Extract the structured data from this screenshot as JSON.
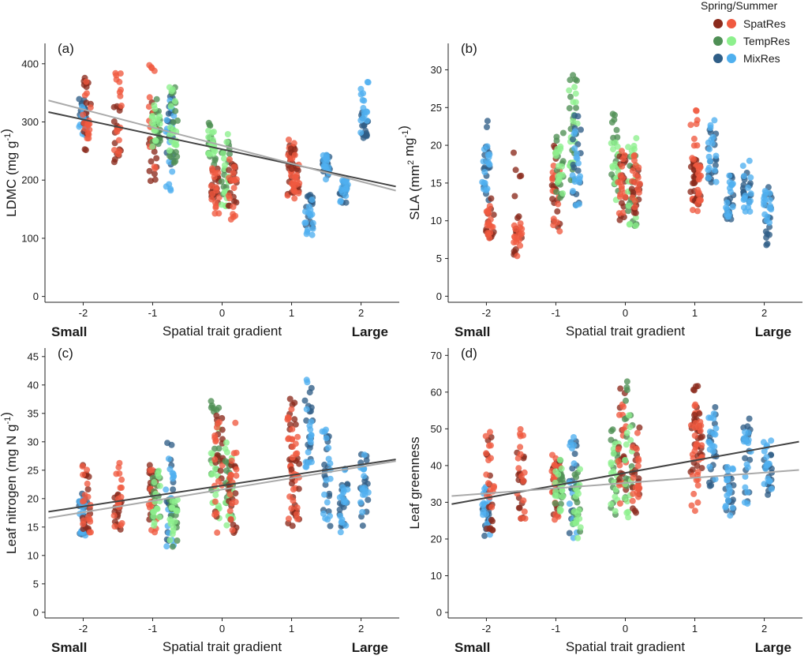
{
  "legend": {
    "title": "Spring/Summer",
    "entries": [
      {
        "name": "SpatRes",
        "spring": "#8b2a1c",
        "summer": "#f05a40"
      },
      {
        "name": "TempRes",
        "spring": "#4f8f55",
        "summer": "#8df08d"
      },
      {
        "name": "MixRes",
        "spring": "#2f5e87",
        "summer": "#4fb0ef"
      }
    ]
  },
  "chart_data": [
    {
      "type": "scatter",
      "panel": "(a)",
      "title": "",
      "xlabel": "Spatial trait gradient",
      "ylabel": "LDMC (mg g⁻¹)",
      "ylabel_parts": {
        "main": "LDMC (mg g",
        "sup": "-1",
        "tail": ")"
      },
      "end_labels": {
        "left": "Small",
        "right": "Large"
      },
      "xlim": [
        -2.55,
        2.55
      ],
      "ylim": [
        -10,
        435
      ],
      "xticks": [
        "-2",
        "-1",
        "0",
        "1",
        "2"
      ],
      "yticks": [
        "0",
        "100",
        "200",
        "300",
        "400"
      ],
      "regression_lines": [
        {
          "name": "spring",
          "color": "#444444",
          "x": [
            -2.5,
            2.5
          ],
          "y": [
            317,
            189
          ]
        },
        {
          "name": "summer",
          "color": "#aaaaaa",
          "x": [
            -2.5,
            2.5
          ],
          "y": [
            337,
            182
          ]
        }
      ],
      "groups": [
        {
          "x": -2.0,
          "treatment": "MixRes",
          "spring": [
            290,
            340
          ],
          "summer": [
            275,
            330
          ]
        },
        {
          "x": -1.95,
          "treatment": "SpatRes",
          "spring": [
            245,
            390
          ],
          "summer": [
            260,
            380
          ]
        },
        {
          "x": -1.5,
          "treatment": "SpatRes",
          "spring": [
            230,
            335
          ],
          "summer": [
            240,
            385
          ]
        },
        {
          "x": -1.0,
          "treatment": "SpatRes",
          "spring": [
            185,
            340
          ],
          "summer": [
            220,
            400
          ]
        },
        {
          "x": -0.95,
          "treatment": "TempRes",
          "spring": [
            260,
            340
          ],
          "summer": [
            250,
            355
          ]
        },
        {
          "x": -0.75,
          "treatment": "MixRes",
          "spring": [
            215,
            345
          ],
          "summer": [
            180,
            350
          ]
        },
        {
          "x": -0.7,
          "treatment": "TempRes",
          "spring": [
            230,
            365
          ],
          "summer": [
            245,
            372
          ]
        },
        {
          "x": -0.15,
          "treatment": "TempRes",
          "spring": [
            225,
            300
          ],
          "summer": [
            240,
            290
          ]
        },
        {
          "x": -0.1,
          "treatment": "SpatRes",
          "spring": [
            150,
            220
          ],
          "summer": [
            140,
            230
          ]
        },
        {
          "x": 0.05,
          "treatment": "TempRes",
          "spring": [
            175,
            280
          ],
          "summer": [
            155,
            290
          ]
        },
        {
          "x": 0.15,
          "treatment": "SpatRes",
          "spring": [
            150,
            235
          ],
          "summer": [
            130,
            250
          ]
        },
        {
          "x": 1.0,
          "treatment": "SpatRes",
          "spring": [
            165,
            268
          ],
          "summer": [
            160,
            270
          ]
        },
        {
          "x": 1.05,
          "treatment": "SpatRes",
          "spring": [
            170,
            262
          ],
          "summer": [
            175,
            255
          ]
        },
        {
          "x": 1.25,
          "treatment": "MixRes",
          "spring": [
            115,
            175
          ],
          "summer": [
            105,
            170
          ]
        },
        {
          "x": 1.5,
          "treatment": "MixRes",
          "spring": [
            205,
            245
          ],
          "summer": [
            200,
            245
          ]
        },
        {
          "x": 1.75,
          "treatment": "MixRes",
          "spring": [
            160,
            200
          ],
          "summer": [
            155,
            210
          ]
        },
        {
          "x": 2.05,
          "treatment": "MixRes",
          "spring": [
            270,
            320
          ],
          "summer": [
            280,
            372
          ]
        }
      ]
    },
    {
      "type": "scatter",
      "panel": "(b)",
      "title": "",
      "xlabel": "Spatial trait gradient",
      "ylabel": "SLA (mm² mg⁻¹)",
      "ylabel_parts": {
        "main": "SLA (mm",
        "sup": "2",
        "mid": " mg",
        "sup2": "-1",
        "tail": ")"
      },
      "end_labels": {
        "left": "Small",
        "right": "Large"
      },
      "xlim": [
        -2.55,
        2.55
      ],
      "ylim": [
        -0.8,
        33.5
      ],
      "xticks": [
        "-2",
        "-1",
        "0",
        "1",
        "2"
      ],
      "yticks": [
        "0",
        "5",
        "10",
        "15",
        "20",
        "25",
        "30"
      ],
      "regression_lines": [],
      "groups": [
        {
          "x": -2.0,
          "treatment": "MixRes",
          "spring": [
            12,
            23.5
          ],
          "summer": [
            12,
            20
          ]
        },
        {
          "x": -1.95,
          "treatment": "SpatRes",
          "spring": [
            7.5,
            13
          ],
          "summer": [
            7.5,
            12
          ]
        },
        {
          "x": -1.55,
          "treatment": "SpatRes",
          "spring": [
            5.5,
            22
          ],
          "summer": [
            5,
            10
          ]
        },
        {
          "x": -1.0,
          "treatment": "SpatRes",
          "spring": [
            9,
            21
          ],
          "summer": [
            7.5,
            19
          ]
        },
        {
          "x": -0.95,
          "treatment": "TempRes",
          "spring": [
            13,
            22
          ],
          "summer": [
            13,
            20
          ]
        },
        {
          "x": -0.75,
          "treatment": "TempRes",
          "spring": [
            15,
            30.5
          ],
          "summer": [
            14,
            28
          ]
        },
        {
          "x": -0.7,
          "treatment": "MixRes",
          "spring": [
            12,
            24
          ],
          "summer": [
            12,
            22
          ]
        },
        {
          "x": -0.15,
          "treatment": "TempRes",
          "spring": [
            13,
            24.5
          ],
          "summer": [
            12,
            22
          ]
        },
        {
          "x": -0.05,
          "treatment": "SpatRes",
          "spring": [
            10,
            19
          ],
          "summer": [
            10,
            20
          ]
        },
        {
          "x": 0.1,
          "treatment": "TempRes",
          "spring": [
            9,
            19
          ],
          "summer": [
            9,
            21
          ]
        },
        {
          "x": 0.15,
          "treatment": "SpatRes",
          "spring": [
            11,
            18
          ],
          "summer": [
            11,
            19
          ]
        },
        {
          "x": 1.0,
          "treatment": "SpatRes",
          "spring": [
            12,
            19
          ],
          "summer": [
            10.5,
            25
          ]
        },
        {
          "x": 1.05,
          "treatment": "SpatRes",
          "spring": [
            12,
            18
          ],
          "summer": [
            12,
            18
          ]
        },
        {
          "x": 1.25,
          "treatment": "MixRes",
          "spring": [
            15,
            23
          ],
          "summer": [
            15,
            24
          ]
        },
        {
          "x": 1.5,
          "treatment": "MixRes",
          "spring": [
            10,
            16
          ],
          "summer": [
            10,
            16
          ]
        },
        {
          "x": 1.75,
          "treatment": "MixRes",
          "spring": [
            11,
            17.5
          ],
          "summer": [
            11,
            18
          ]
        },
        {
          "x": 2.05,
          "treatment": "MixRes",
          "spring": [
            6.3,
            14.5
          ],
          "summer": [
            9.5,
            14
          ]
        }
      ]
    },
    {
      "type": "scatter",
      "panel": "(c)",
      "title": "",
      "xlabel": "Spatial trait gradient",
      "ylabel": "Leaf nitrogen (mg N g⁻¹)",
      "ylabel_parts": {
        "main": "Leaf nitrogen (mg N g",
        "sup": "-1",
        "tail": ")"
      },
      "end_labels": {
        "left": "Small",
        "right": "Large"
      },
      "xlim": [
        -2.55,
        2.55
      ],
      "ylim": [
        -1,
        46.5
      ],
      "xticks": [
        "-2",
        "-1",
        "0",
        "1",
        "2"
      ],
      "yticks": [
        "0",
        "5",
        "10",
        "15",
        "20",
        "25",
        "30",
        "35",
        "40",
        "45"
      ],
      "regression_lines": [
        {
          "name": "spring",
          "color": "#444444",
          "x": [
            -2.5,
            2.5
          ],
          "y": [
            17.7,
            26.9
          ]
        },
        {
          "name": "summer",
          "color": "#aaaaaa",
          "x": [
            -2.5,
            2.5
          ],
          "y": [
            16.6,
            26.6
          ]
        }
      ],
      "groups": [
        {
          "x": -2.0,
          "treatment": "MixRes",
          "spring": [
            13.5,
            21
          ],
          "summer": [
            13,
            20
          ]
        },
        {
          "x": -1.95,
          "treatment": "SpatRes",
          "spring": [
            14,
            26
          ],
          "summer": [
            14,
            26
          ]
        },
        {
          "x": -1.5,
          "treatment": "SpatRes",
          "spring": [
            13,
            22
          ],
          "summer": [
            13,
            26.5
          ]
        },
        {
          "x": -1.0,
          "treatment": "SpatRes",
          "spring": [
            14,
            27
          ],
          "summer": [
            14,
            26
          ]
        },
        {
          "x": -0.95,
          "treatment": "TempRes",
          "spring": [
            15,
            26
          ],
          "summer": [
            15,
            25
          ]
        },
        {
          "x": -0.75,
          "treatment": "MixRes",
          "spring": [
            12,
            30.5
          ],
          "summer": [
            11.5,
            28
          ]
        },
        {
          "x": -0.7,
          "treatment": "TempRes",
          "spring": [
            11.5,
            20
          ],
          "summer": [
            12,
            20
          ]
        },
        {
          "x": -0.1,
          "treatment": "TempRes",
          "spring": [
            17,
            38.5
          ],
          "summer": [
            15,
            33
          ]
        },
        {
          "x": -0.05,
          "treatment": "SpatRes",
          "spring": [
            15,
            36
          ],
          "summer": [
            14,
            36
          ]
        },
        {
          "x": 0.1,
          "treatment": "TempRes",
          "spring": [
            16,
            27
          ],
          "summer": [
            14,
            30
          ]
        },
        {
          "x": 0.15,
          "treatment": "SpatRes",
          "spring": [
            12.5,
            28
          ],
          "summer": [
            13,
            35.5
          ]
        },
        {
          "x": 1.0,
          "treatment": "SpatRes",
          "spring": [
            15,
            39
          ],
          "summer": [
            15,
            38
          ]
        },
        {
          "x": 1.05,
          "treatment": "SpatRes",
          "spring": [
            16,
            30
          ],
          "summer": [
            16,
            31
          ]
        },
        {
          "x": 1.25,
          "treatment": "MixRes",
          "spring": [
            26,
            40
          ],
          "summer": [
            24,
            43
          ]
        },
        {
          "x": 1.5,
          "treatment": "MixRes",
          "spring": [
            15,
            32
          ],
          "summer": [
            15,
            32.5
          ]
        },
        {
          "x": 1.75,
          "treatment": "MixRes",
          "spring": [
            15,
            26
          ],
          "summer": [
            14,
            26
          ]
        },
        {
          "x": 2.05,
          "treatment": "MixRes",
          "spring": [
            14.5,
            28
          ],
          "summer": [
            16,
            29
          ]
        }
      ]
    },
    {
      "type": "scatter",
      "panel": "(d)",
      "title": "",
      "xlabel": "Spatial trait gradient",
      "ylabel": "Leaf greenness",
      "ylabel_parts": {
        "main": "Leaf greenness"
      },
      "end_labels": {
        "left": "Small",
        "right": "Large"
      },
      "xlim": [
        -2.55,
        2.55
      ],
      "ylim": [
        -1.5,
        72
      ],
      "xticks": [
        "-2",
        "-1",
        "0",
        "1",
        "2"
      ],
      "yticks": [
        "0",
        "10",
        "20",
        "30",
        "40",
        "50",
        "60",
        "70"
      ],
      "regression_lines": [
        {
          "name": "spring",
          "color": "#444444",
          "x": [
            -2.5,
            2.5
          ],
          "y": [
            29.5,
            46.5
          ]
        },
        {
          "name": "summer",
          "color": "#aaaaaa",
          "x": [
            -2.5,
            2.5
          ],
          "y": [
            31.7,
            38.8
          ]
        }
      ],
      "groups": [
        {
          "x": -2.0,
          "treatment": "MixRes",
          "spring": [
            19,
            38
          ],
          "summer": [
            20,
            37
          ]
        },
        {
          "x": -1.95,
          "treatment": "SpatRes",
          "spring": [
            20,
            48
          ],
          "summer": [
            22,
            49.5
          ]
        },
        {
          "x": -1.5,
          "treatment": "SpatRes",
          "spring": [
            25,
            45
          ],
          "summer": [
            25,
            51.5
          ]
        },
        {
          "x": -1.0,
          "treatment": "SpatRes",
          "spring": [
            25,
            43
          ],
          "summer": [
            25,
            43
          ]
        },
        {
          "x": -0.95,
          "treatment": "TempRes",
          "spring": [
            28,
            42
          ],
          "summer": [
            27,
            42
          ]
        },
        {
          "x": -0.75,
          "treatment": "MixRes",
          "spring": [
            20,
            47
          ],
          "summer": [
            20,
            48
          ]
        },
        {
          "x": -0.7,
          "treatment": "TempRes",
          "spring": [
            22,
            40
          ],
          "summer": [
            20,
            40
          ]
        },
        {
          "x": -0.15,
          "treatment": "TempRes",
          "spring": [
            25,
            50
          ],
          "summer": [
            26,
            46
          ]
        },
        {
          "x": -0.05,
          "treatment": "SpatRes",
          "spring": [
            30,
            61
          ],
          "summer": [
            28,
            60
          ]
        },
        {
          "x": 0.05,
          "treatment": "TempRes",
          "spring": [
            30,
            64.5
          ],
          "summer": [
            25,
            55
          ]
        },
        {
          "x": 0.15,
          "treatment": "SpatRes",
          "spring": [
            27,
            52
          ],
          "summer": [
            30,
            52
          ]
        },
        {
          "x": 1.0,
          "treatment": "SpatRes",
          "spring": [
            37,
            65
          ],
          "summer": [
            26,
            60
          ]
        },
        {
          "x": 1.05,
          "treatment": "SpatRes",
          "spring": [
            37,
            55
          ],
          "summer": [
            36,
            55
          ]
        },
        {
          "x": 1.25,
          "treatment": "MixRes",
          "spring": [
            32,
            56.5
          ],
          "summer": [
            30,
            56
          ]
        },
        {
          "x": 1.5,
          "treatment": "MixRes",
          "spring": [
            27,
            40
          ],
          "summer": [
            26,
            40
          ]
        },
        {
          "x": 1.75,
          "treatment": "MixRes",
          "spring": [
            30,
            53
          ],
          "summer": [
            29,
            50
          ]
        },
        {
          "x": 2.05,
          "treatment": "MixRes",
          "spring": [
            32,
            43
          ],
          "summer": [
            33,
            47
          ]
        }
      ]
    }
  ]
}
